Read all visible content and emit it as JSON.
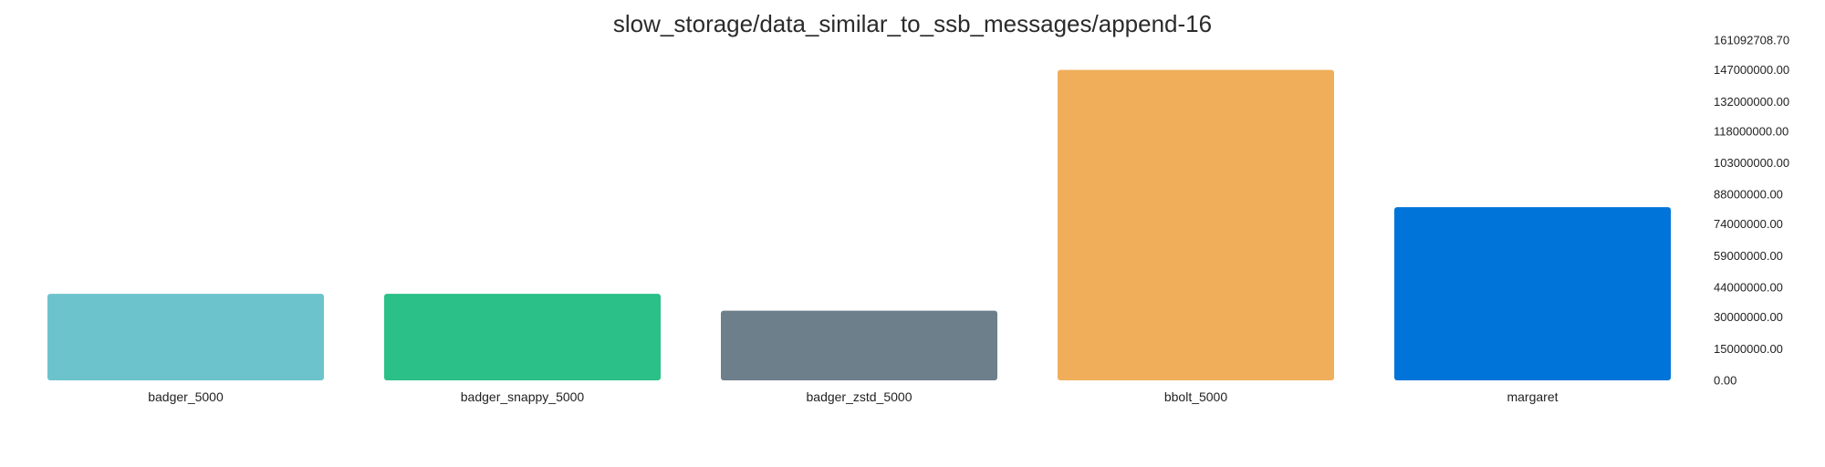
{
  "chart_data": {
    "type": "bar",
    "title": "slow_storage/data_similar_to_ssb_messages/append-16",
    "xlabel": "",
    "ylabel": "",
    "categories": [
      "badger_5000",
      "badger_snappy_5000",
      "badger_zstd_5000",
      "bbolt_5000",
      "margaret"
    ],
    "values": [
      41000000,
      41000000,
      33000000,
      147000000,
      82000000
    ],
    "colors": [
      "#6cc3cc",
      "#2ac087",
      "#6e7f8c",
      "#f0ae5b",
      "#0074d9"
    ],
    "ylim": [
      0,
      161092708.7
    ],
    "y_ticks": [
      "0.00",
      "15000000.00",
      "30000000.00",
      "44000000.00",
      "59000000.00",
      "74000000.00",
      "88000000.00",
      "103000000.00",
      "118000000.00",
      "132000000.00",
      "147000000.00",
      "161092708.70"
    ],
    "y_axis_position": "right",
    "grid": false,
    "legend": "none"
  }
}
